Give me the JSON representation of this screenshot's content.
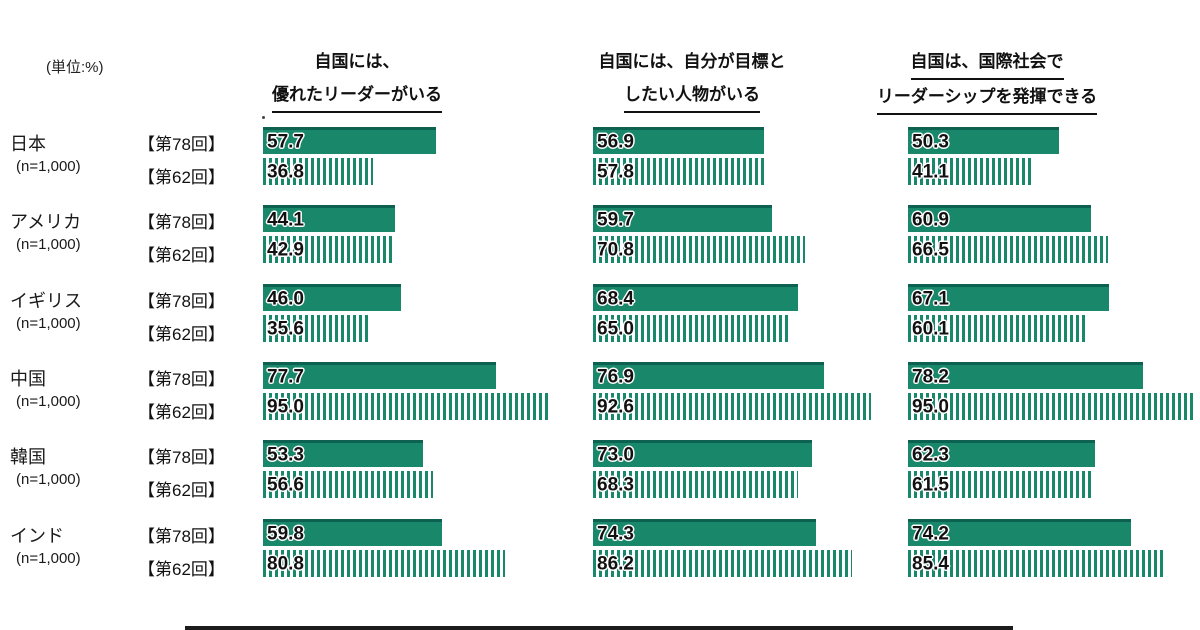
{
  "unit_label": "(単位:%)",
  "survey_labels": {
    "r78": "【第78回】",
    "r62": "【第62回】"
  },
  "columns": [
    {
      "line1": "自国には、",
      "line2": "優れたリーダーがいる"
    },
    {
      "line1": "自国には、自分が目標と",
      "line2": "したい人物がいる"
    },
    {
      "line1": "自国は、国際社会で",
      "line2": "リーダーシップを発揮できる"
    }
  ],
  "countries": [
    {
      "name": "日本",
      "n": "(n=1,000)"
    },
    {
      "name": "アメリカ",
      "n": "(n=1,000)"
    },
    {
      "name": "イギリス",
      "n": "(n=1,000)"
    },
    {
      "name": "中国",
      "n": "(n=1,000)"
    },
    {
      "name": "韓国",
      "n": "(n=1,000)"
    },
    {
      "name": "インド",
      "n": "(n=1,000)"
    }
  ],
  "colors": {
    "bar_green": "#18876a",
    "bar_green_dark_top": "#0d6150"
  },
  "chart_data": {
    "type": "bar",
    "orientation": "horizontal",
    "unit": "%",
    "xlim": [
      0,
      100
    ],
    "categories": [
      "日本",
      "アメリカ",
      "イギリス",
      "中国",
      "韓国",
      "インド"
    ],
    "sample_size_per_category": "n=1,000",
    "legend": {
      "第78回": "solid",
      "第62回": "striped"
    },
    "groups": [
      {
        "question": "自国には、優れたリーダーがいる",
        "series": [
          {
            "name": "第78回",
            "values": [
              57.7,
              44.1,
              46.0,
              77.7,
              53.3,
              59.8
            ]
          },
          {
            "name": "第62回",
            "values": [
              36.8,
              42.9,
              35.6,
              95.0,
              56.6,
              80.8
            ]
          }
        ]
      },
      {
        "question": "自国には、自分が目標としたい人物がいる",
        "series": [
          {
            "name": "第78回",
            "values": [
              56.9,
              59.7,
              68.4,
              76.9,
              73.0,
              74.3
            ]
          },
          {
            "name": "第62回",
            "values": [
              57.8,
              70.8,
              65.0,
              92.6,
              68.3,
              86.2
            ]
          }
        ]
      },
      {
        "question": "自国は、国際社会でリーダーシップを発揮できる",
        "series": [
          {
            "name": "第78回",
            "values": [
              50.3,
              60.9,
              67.1,
              78.2,
              62.3,
              74.2
            ]
          },
          {
            "name": "第62回",
            "values": [
              41.1,
              66.5,
              60.1,
              95.0,
              61.5,
              85.4
            ]
          }
        ]
      }
    ]
  }
}
